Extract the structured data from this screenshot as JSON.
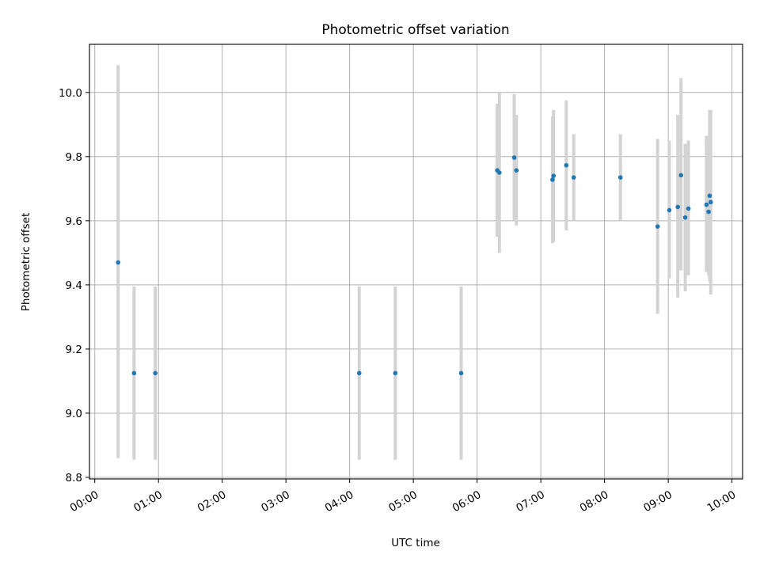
{
  "chart_data": {
    "type": "scatter",
    "title": "Photometric offset variation",
    "xlabel": "UTC time",
    "ylabel": "Photometric offset",
    "x_is_time": true,
    "xlim": [
      "-00:05",
      "10:10"
    ],
    "ylim": [
      8.795,
      10.15
    ],
    "grid": true,
    "x_ticks": [
      "00:00",
      "01:00",
      "02:00",
      "03:00",
      "04:00",
      "05:00",
      "06:00",
      "07:00",
      "08:00",
      "09:00",
      "10:00"
    ],
    "y_ticks": [
      "8.8",
      "9.0",
      "9.2",
      "9.4",
      "9.6",
      "9.8",
      "10.0"
    ],
    "error_color": "#d3d3d3",
    "point_color": "#1f77b4",
    "points": [
      {
        "x": "00:22",
        "y": 9.47,
        "err_low": 8.86,
        "err_high": 10.085
      },
      {
        "x": "00:37",
        "y": 9.125,
        "err_low": 8.855,
        "err_high": 9.395
      },
      {
        "x": "00:57",
        "y": 9.125,
        "err_low": 8.855,
        "err_high": 9.395
      },
      {
        "x": "04:09",
        "y": 9.125,
        "err_low": 8.855,
        "err_high": 9.395
      },
      {
        "x": "04:43",
        "y": 9.125,
        "err_low": 8.855,
        "err_high": 9.395
      },
      {
        "x": "05:45",
        "y": 9.125,
        "err_low": 8.855,
        "err_high": 9.395
      },
      {
        "x": "06:19",
        "y": 9.757,
        "err_low": 9.55,
        "err_high": 9.965
      },
      {
        "x": "06:21",
        "y": 9.75,
        "err_low": 9.5,
        "err_high": 10.0
      },
      {
        "x": "06:35",
        "y": 9.797,
        "err_low": 9.6,
        "err_high": 9.995
      },
      {
        "x": "06:37",
        "y": 9.757,
        "err_low": 9.585,
        "err_high": 9.93
      },
      {
        "x": "07:11",
        "y": 9.728,
        "err_low": 9.53,
        "err_high": 9.925
      },
      {
        "x": "07:12",
        "y": 9.74,
        "err_low": 9.535,
        "err_high": 9.945
      },
      {
        "x": "07:24",
        "y": 9.773,
        "err_low": 9.57,
        "err_high": 9.975
      },
      {
        "x": "07:31",
        "y": 9.735,
        "err_low": 9.6,
        "err_high": 9.87
      },
      {
        "x": "08:15",
        "y": 9.735,
        "err_low": 9.6,
        "err_high": 9.87
      },
      {
        "x": "08:50",
        "y": 9.582,
        "err_low": 9.31,
        "err_high": 9.855
      },
      {
        "x": "09:01",
        "y": 9.633,
        "err_low": 9.42,
        "err_high": 9.85
      },
      {
        "x": "09:09",
        "y": 9.643,
        "err_low": 9.36,
        "err_high": 9.93
      },
      {
        "x": "09:12",
        "y": 9.742,
        "err_low": 9.445,
        "err_high": 10.045
      },
      {
        "x": "09:16",
        "y": 9.61,
        "err_low": 9.38,
        "err_high": 9.84
      },
      {
        "x": "09:19",
        "y": 9.638,
        "err_low": 9.43,
        "err_high": 9.85
      },
      {
        "x": "09:36",
        "y": 9.65,
        "err_low": 9.44,
        "err_high": 9.865
      },
      {
        "x": "09:38",
        "y": 9.628,
        "err_low": 9.43,
        "err_high": 9.83
      },
      {
        "x": "09:39",
        "y": 9.678,
        "err_low": 9.41,
        "err_high": 9.945
      },
      {
        "x": "09:40",
        "y": 9.658,
        "err_low": 9.37,
        "err_high": 9.945
      }
    ]
  }
}
